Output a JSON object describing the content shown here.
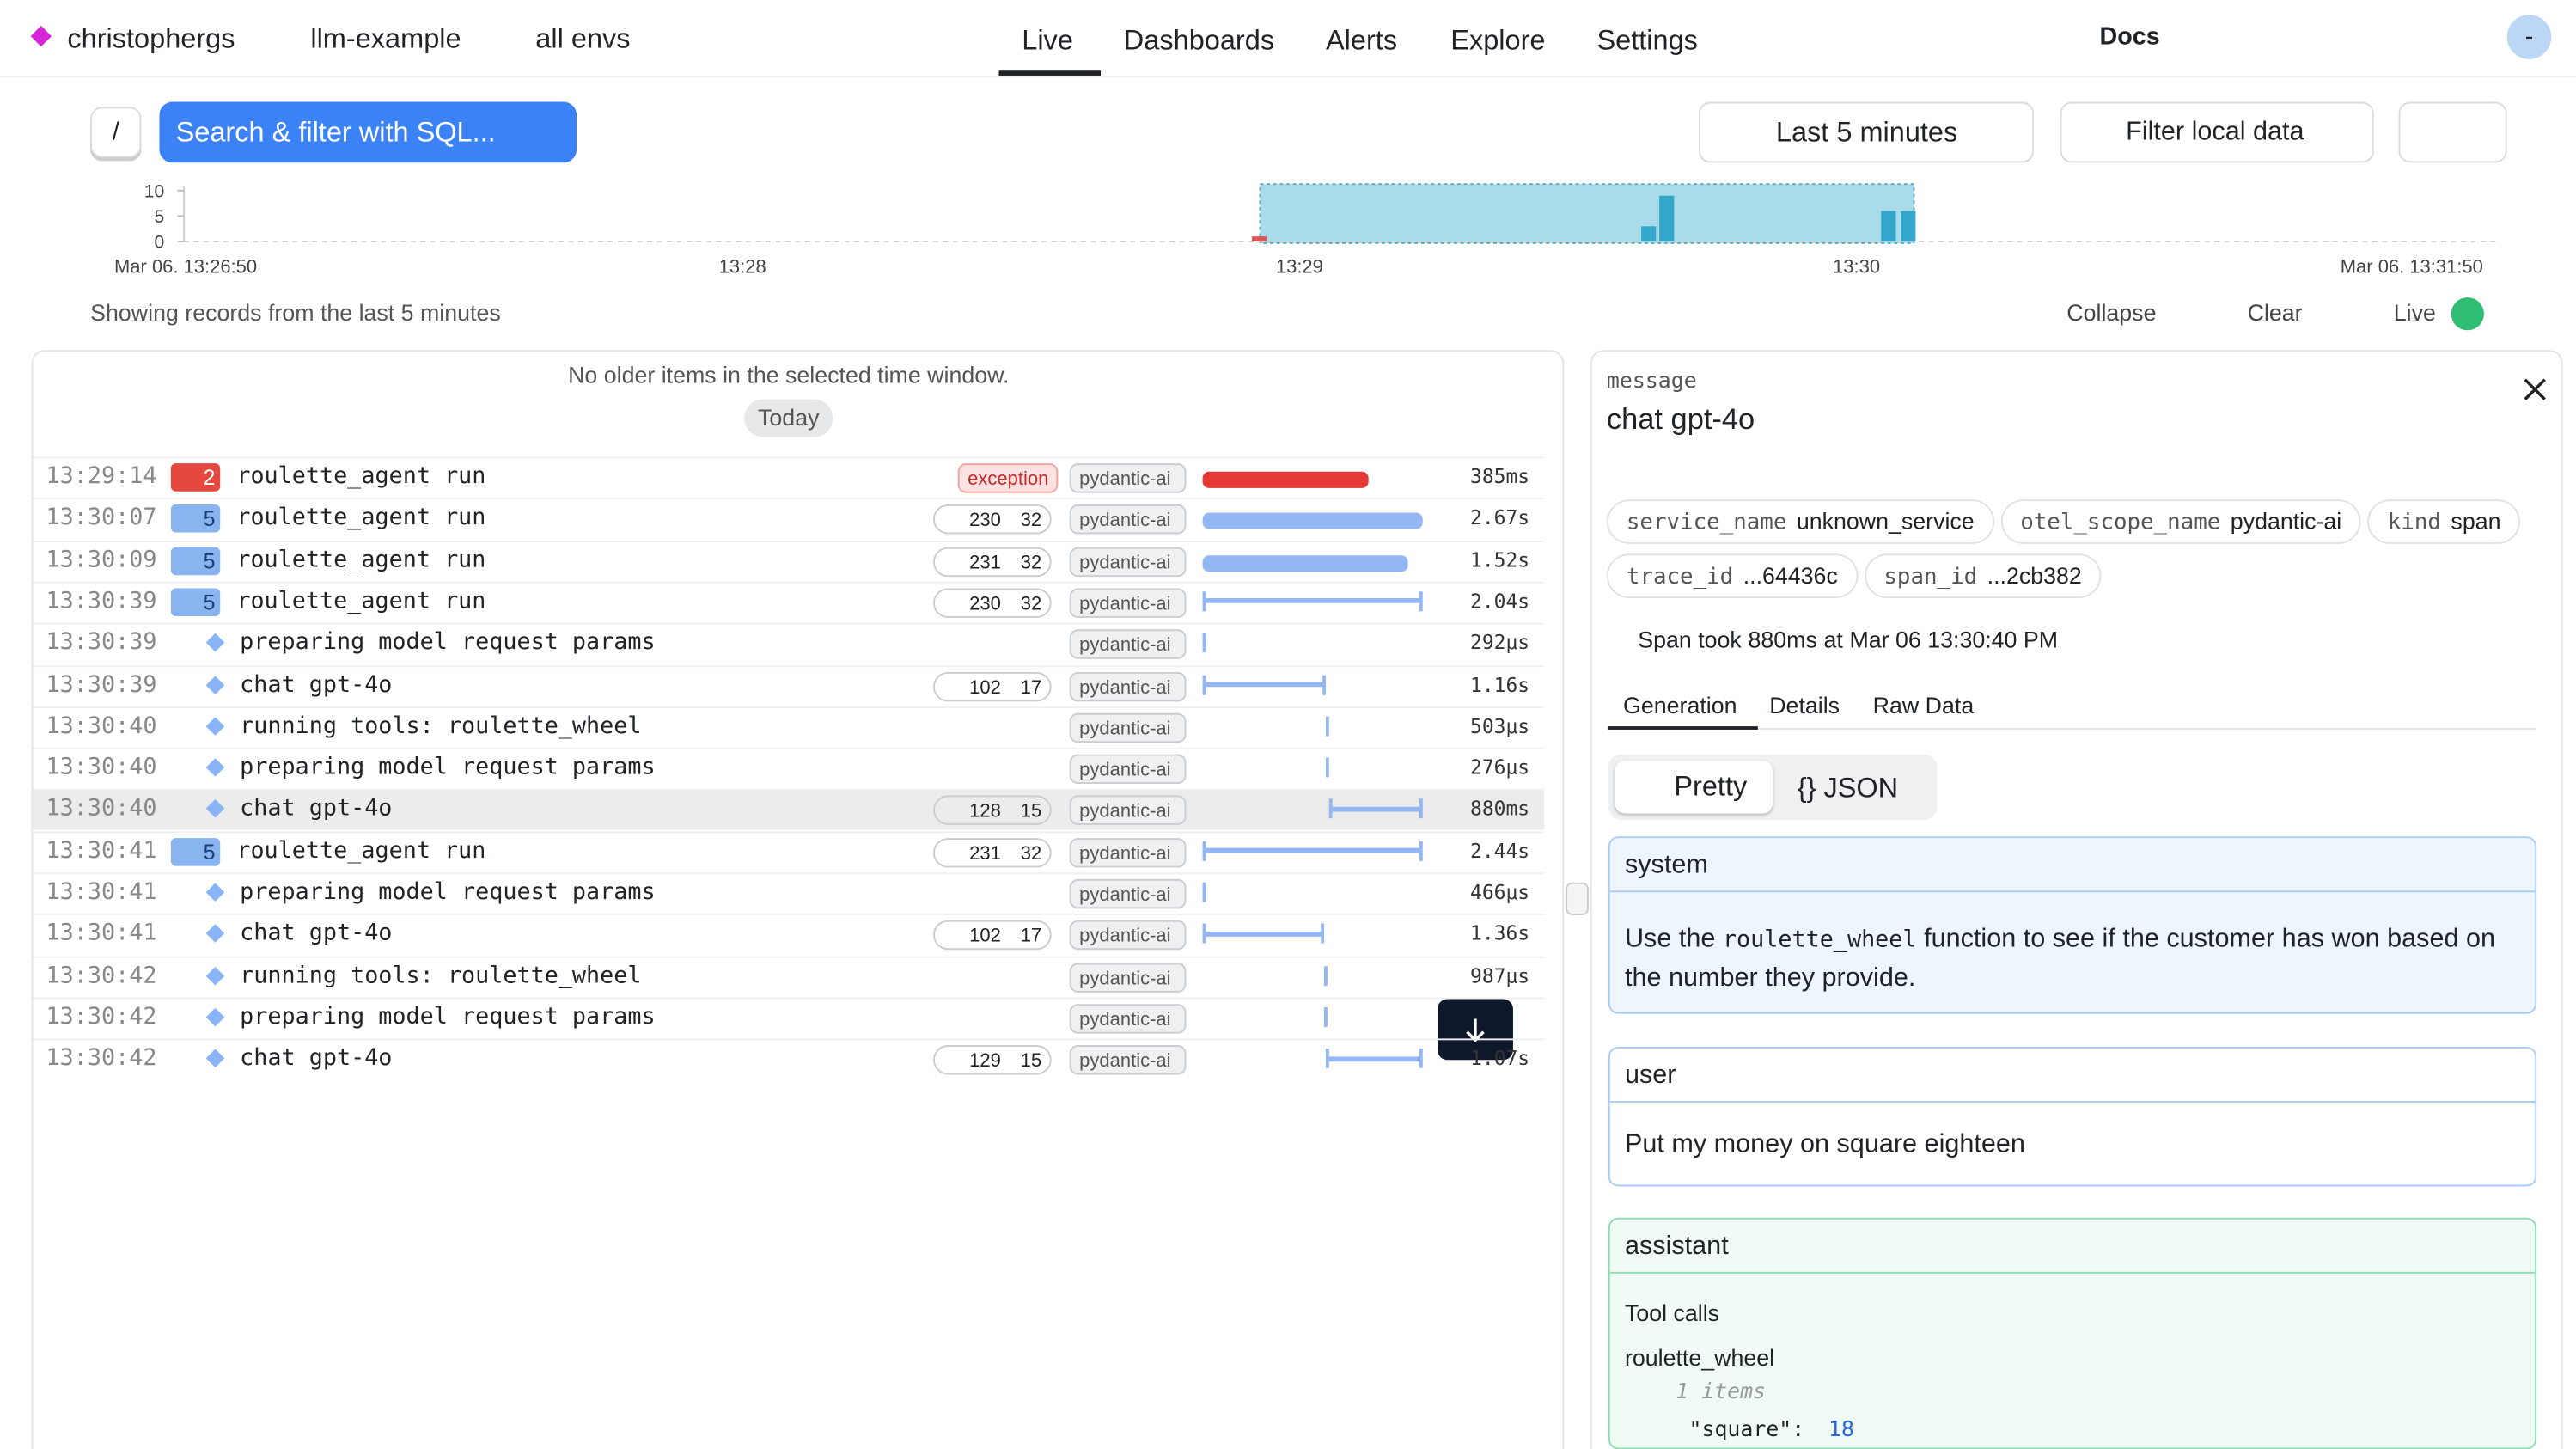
{
  "header": {
    "org": "christophergs",
    "project": "llm-example",
    "env": "all envs",
    "nav": [
      "Live",
      "Dashboards",
      "Alerts",
      "Explore",
      "Settings"
    ],
    "docs": "Docs",
    "avatar": "-"
  },
  "toolbar": {
    "slash": "/",
    "search": "Search & filter with SQL...",
    "time_range": "Last 5 minutes",
    "filter": "Filter local data"
  },
  "timeline": {
    "yticks": [
      0,
      5,
      10
    ],
    "ylim": [
      0,
      10
    ],
    "x_labels": [
      "Mar 06. 13:26:50",
      "13:28",
      "13:29",
      "13:30",
      "Mar 06. 13:31:50"
    ],
    "counts": [
      1,
      3,
      9,
      6,
      6
    ]
  },
  "status": {
    "text": "Showing records from the last 5 minutes",
    "collapse": "Collapse",
    "clear": "Clear",
    "live": "Live"
  },
  "list": {
    "notice": "No older items in the selected time window.",
    "day": "Today",
    "rows": [
      {
        "time": "13:29:14",
        "count": 2,
        "name": "roulette_agent run",
        "exception": "exception",
        "scope": "pydantic-ai",
        "duration": "385ms"
      },
      {
        "time": "13:30:07",
        "count": 5,
        "name": "roulette_agent run",
        "tokens_in": 230,
        "tokens_out": 32,
        "scope": "pydantic-ai",
        "duration": "2.67s"
      },
      {
        "time": "13:30:09",
        "count": 5,
        "name": "roulette_agent run",
        "tokens_in": 231,
        "tokens_out": 32,
        "scope": "pydantic-ai",
        "duration": "1.52s"
      },
      {
        "time": "13:30:39",
        "count": 5,
        "name": "roulette_agent run",
        "tokens_in": 230,
        "tokens_out": 32,
        "scope": "pydantic-ai",
        "duration": "2.04s"
      },
      {
        "time": "13:30:39",
        "name": "preparing model request params",
        "scope": "pydantic-ai",
        "duration": "292μs"
      },
      {
        "time": "13:30:39",
        "name": "chat gpt-4o",
        "tokens_in": 102,
        "tokens_out": 17,
        "scope": "pydantic-ai",
        "duration": "1.16s"
      },
      {
        "time": "13:30:40",
        "name": "running tools: roulette_wheel",
        "scope": "pydantic-ai",
        "duration": "503μs"
      },
      {
        "time": "13:30:40",
        "name": "preparing model request params",
        "scope": "pydantic-ai",
        "duration": "276μs"
      },
      {
        "time": "13:30:40",
        "name": "chat gpt-4o",
        "tokens_in": 128,
        "tokens_out": 15,
        "scope": "pydantic-ai",
        "duration": "880ms"
      },
      {
        "time": "13:30:41",
        "count": 5,
        "name": "roulette_agent run",
        "tokens_in": 231,
        "tokens_out": 32,
        "scope": "pydantic-ai",
        "duration": "2.44s"
      },
      {
        "time": "13:30:41",
        "name": "preparing model request params",
        "scope": "pydantic-ai",
        "duration": "466μs"
      },
      {
        "time": "13:30:41",
        "name": "chat gpt-4o",
        "tokens_in": 102,
        "tokens_out": 17,
        "scope": "pydantic-ai",
        "duration": "1.36s"
      },
      {
        "time": "13:30:42",
        "name": "running tools: roulette_wheel",
        "scope": "pydantic-ai",
        "duration": "987μs"
      },
      {
        "time": "13:30:42",
        "name": "preparing model request params",
        "scope": "pydantic-ai"
      },
      {
        "time": "13:30:42",
        "name": "chat gpt-4o",
        "tokens_in": 129,
        "tokens_out": 15,
        "scope": "pydantic-ai",
        "duration": "1.07s"
      }
    ]
  },
  "details": {
    "label": "message",
    "title": "chat gpt-4o",
    "attributes": [
      [
        "service_name",
        "unknown_service"
      ],
      [
        "otel_scope_name",
        "pydantic-ai"
      ],
      [
        "kind",
        "span"
      ],
      [
        "trace_id",
        "...64436c"
      ],
      [
        "span_id",
        "...2cb382"
      ]
    ],
    "timing": [
      "Span took",
      "880ms",
      "at",
      "Mar 06 13:30:40 PM"
    ],
    "tabs": [
      "Generation",
      "Details",
      "Raw Data"
    ],
    "views": [
      "Pretty",
      "{} JSON"
    ],
    "messages": {
      "system": {
        "role": "system",
        "text": [
          "Use the",
          "roulette_wheel",
          "function to see if the customer has won based on the number they provide."
        ]
      },
      "user": {
        "role": "user",
        "text": "Put my money on square eighteen"
      },
      "assistant": {
        "role": "assistant",
        "tool_calls": "Tool calls",
        "tool": "roulette_wheel",
        "items": "1 items",
        "key": "\"square\":",
        "value": 18
      }
    }
  }
}
